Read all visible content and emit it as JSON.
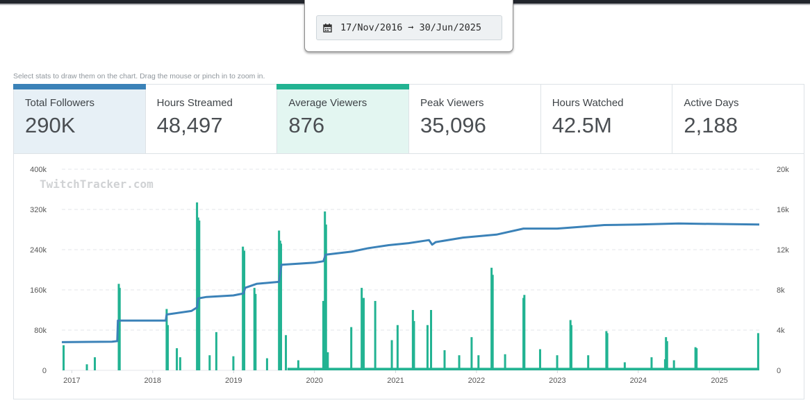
{
  "date_range": {
    "start": "17/Nov/2016",
    "arrow": "➞",
    "end": "30/Jun/2025"
  },
  "hint": "Select stats to draw them on the chart. Drag the mouse or pinch in to zoom in.",
  "colors": {
    "followers": "#3b82b8",
    "viewers": "#22b392",
    "grid": "#e3e6e8"
  },
  "stats": [
    {
      "label": "Total Followers",
      "value": "290K",
      "selected": true,
      "color": "#3b82b8"
    },
    {
      "label": "Hours Streamed",
      "value": "48,497",
      "selected": false
    },
    {
      "label": "Average Viewers",
      "value": "876",
      "selected": true,
      "color": "#22b392"
    },
    {
      "label": "Peak Viewers",
      "value": "35,096",
      "selected": false
    },
    {
      "label": "Hours Watched",
      "value": "42.5M",
      "selected": false
    },
    {
      "label": "Active Days",
      "value": "2,188",
      "selected": false
    }
  ],
  "watermark": "TwitchTracker.com",
  "chart_data": {
    "type": "line+bar",
    "x_start": "2016-11-17",
    "x_end": "2025-06-30",
    "x_tick_labels": [
      "2017",
      "2018",
      "2019",
      "2020",
      "2021",
      "2022",
      "2023",
      "2024",
      "2025"
    ],
    "y_left": {
      "range": [
        0,
        400000
      ],
      "tick_labels": [
        "0",
        "80k",
        "160k",
        "240k",
        "320k",
        "400k"
      ]
    },
    "y_right": {
      "range": [
        0,
        20000
      ],
      "tick_labels": [
        "0",
        "4k",
        "8k",
        "12k",
        "16k",
        "20k"
      ]
    },
    "grid": true,
    "series": [
      {
        "name": "Total Followers",
        "type": "line",
        "axis": "left",
        "points": [
          [
            "2016-11-17",
            56000
          ],
          [
            "2017-07-01",
            57000
          ],
          [
            "2017-07-25",
            58000
          ],
          [
            "2017-07-28",
            99000
          ],
          [
            "2018-03-01",
            99000
          ],
          [
            "2018-03-05",
            111000
          ],
          [
            "2018-06-25",
            118000
          ],
          [
            "2018-07-20",
            125000
          ],
          [
            "2018-07-25",
            143000
          ],
          [
            "2018-09-01",
            146000
          ],
          [
            "2018-12-31",
            149000
          ],
          [
            "2019-02-15",
            153000
          ],
          [
            "2019-02-22",
            164000
          ],
          [
            "2019-04-15",
            172000
          ],
          [
            "2019-07-25",
            176000
          ],
          [
            "2019-08-05",
            210000
          ],
          [
            "2019-12-31",
            214000
          ],
          [
            "2020-02-10",
            217000
          ],
          [
            "2020-02-20",
            230000
          ],
          [
            "2020-06-15",
            236000
          ],
          [
            "2020-09-01",
            243000
          ],
          [
            "2020-12-01",
            249000
          ],
          [
            "2021-03-01",
            253000
          ],
          [
            "2021-06-01",
            259000
          ],
          [
            "2021-06-15",
            250000
          ],
          [
            "2021-07-01",
            255000
          ],
          [
            "2021-11-01",
            264000
          ],
          [
            "2022-04-01",
            270000
          ],
          [
            "2022-08-01",
            282000
          ],
          [
            "2022-12-31",
            282000
          ],
          [
            "2023-05-01",
            286000
          ],
          [
            "2023-08-01",
            289000
          ],
          [
            "2024-01-01",
            290000
          ],
          [
            "2024-07-01",
            292000
          ],
          [
            "2025-06-30",
            290000
          ]
        ]
      },
      {
        "name": "Average Viewers",
        "type": "bar",
        "axis": "right",
        "points": [
          [
            "2016-11-25",
            2500
          ],
          [
            "2017-03-10",
            600
          ],
          [
            "2017-04-15",
            1300
          ],
          [
            "2017-08-01",
            8600
          ],
          [
            "2017-08-05",
            8200
          ],
          [
            "2018-03-05",
            6100
          ],
          [
            "2018-03-10",
            4500
          ],
          [
            "2018-04-20",
            2200
          ],
          [
            "2018-05-05",
            1300
          ],
          [
            "2018-07-20",
            16700
          ],
          [
            "2018-07-25",
            15200
          ],
          [
            "2018-07-30",
            14900
          ],
          [
            "2018-09-15",
            1500
          ],
          [
            "2018-10-15",
            3800
          ],
          [
            "2018-12-31",
            1400
          ],
          [
            "2019-02-12",
            12300
          ],
          [
            "2019-02-18",
            11900
          ],
          [
            "2019-04-05",
            8200
          ],
          [
            "2019-04-10",
            7600
          ],
          [
            "2019-06-01",
            1200
          ],
          [
            "2019-07-25",
            13900
          ],
          [
            "2019-07-30",
            12900
          ],
          [
            "2019-08-03",
            12600
          ],
          [
            "2019-08-25",
            3500
          ],
          [
            "2019-10-20",
            1000
          ],
          [
            "2020-02-10",
            6900
          ],
          [
            "2020-02-17",
            15800
          ],
          [
            "2020-02-22",
            14500
          ],
          [
            "2020-03-01",
            1800
          ],
          [
            "2020-06-15",
            4300
          ],
          [
            "2020-08-01",
            8200
          ],
          [
            "2020-08-10",
            7200
          ],
          [
            "2020-10-01",
            6900
          ],
          [
            "2020-12-15",
            3000
          ],
          [
            "2021-01-10",
            4500
          ],
          [
            "2021-03-20",
            6000
          ],
          [
            "2021-03-25",
            4900
          ],
          [
            "2021-05-25",
            4500
          ],
          [
            "2021-06-10",
            6000
          ],
          [
            "2021-08-10",
            2000
          ],
          [
            "2021-10-15",
            1500
          ],
          [
            "2021-12-10",
            3300
          ],
          [
            "2022-01-10",
            1500
          ],
          [
            "2022-03-10",
            10200
          ],
          [
            "2022-03-15",
            9500
          ],
          [
            "2022-05-10",
            1600
          ],
          [
            "2022-08-01",
            7200
          ],
          [
            "2022-08-05",
            7500
          ],
          [
            "2022-10-15",
            2100
          ],
          [
            "2022-12-31",
            1500
          ],
          [
            "2023-03-01",
            5000
          ],
          [
            "2023-03-05",
            4500
          ],
          [
            "2023-05-20",
            1500
          ],
          [
            "2023-08-10",
            3900
          ],
          [
            "2023-08-14",
            3700
          ],
          [
            "2023-11-01",
            800
          ],
          [
            "2024-03-01",
            1300
          ],
          [
            "2024-05-01",
            1100
          ],
          [
            "2024-05-05",
            3300
          ],
          [
            "2024-05-10",
            2900
          ],
          [
            "2024-06-10",
            1000
          ],
          [
            "2024-09-15",
            2300
          ],
          [
            "2024-09-20",
            2200
          ],
          [
            "2025-06-25",
            3700
          ]
        ]
      }
    ]
  }
}
